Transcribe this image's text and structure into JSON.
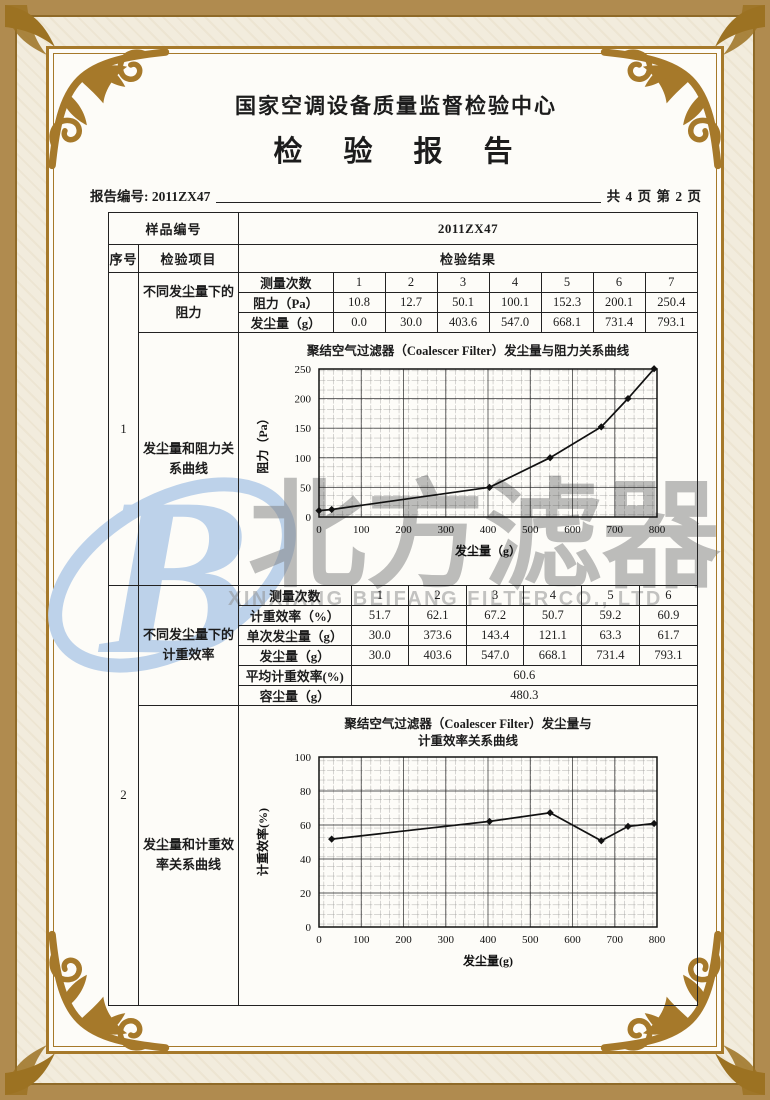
{
  "header": {
    "org_title": "国家空调设备质量监督检验中心",
    "report_title": "检　验　报　告",
    "report_no": "报告编号: 2011ZX47",
    "page_info": "共 4 页 第 2 页"
  },
  "watermark": {
    "logo_letter": "B",
    "cn_chars": [
      "北",
      "方",
      "滤",
      "器"
    ],
    "en_text": "XINXIANG BEIFANG FILTER CO., LTD",
    "logo_color": "#bdd2ea",
    "text_color": "#919191"
  },
  "frame": {
    "gold_color": "#a6792a",
    "band_color": "#b08b4f"
  },
  "table": {
    "sample_label": "样品编号",
    "sample_value": "2011ZX47",
    "headers": {
      "seq": "序号",
      "item": "检验项目",
      "result": "检验结果"
    },
    "section1": {
      "seq": "1",
      "item_table": "不同发尘量下的阻力",
      "item_chart": "发尘量和阻力关系曲线",
      "data_table": {
        "rows": [
          {
            "label": "测量次数",
            "values": [
              "1",
              "2",
              "3",
              "4",
              "5",
              "6",
              "7"
            ]
          },
          {
            "label": "阻力（Pa）",
            "values": [
              "10.8",
              "12.7",
              "50.1",
              "100.1",
              "152.3",
              "200.1",
              "250.4"
            ]
          },
          {
            "label": "发尘量（g）",
            "values": [
              "0.0",
              "30.0",
              "403.6",
              "547.0",
              "668.1",
              "731.4",
              "793.1"
            ]
          }
        ]
      }
    },
    "section2": {
      "seq": "2",
      "item_table": "不同发尘量下的计重效率",
      "item_chart": "发尘量和计重效率关系曲线",
      "data_table": {
        "rows": [
          {
            "label": "测量次数",
            "values": [
              "1",
              "2",
              "3",
              "4",
              "5",
              "6"
            ]
          },
          {
            "label": "计重效率（%）",
            "values": [
              "51.7",
              "62.1",
              "67.2",
              "50.7",
              "59.2",
              "60.9"
            ]
          },
          {
            "label": "单次发尘量（g）",
            "values": [
              "30.0",
              "373.6",
              "143.4",
              "121.1",
              "63.3",
              "61.7"
            ]
          },
          {
            "label": "发尘量（g）",
            "values": [
              "30.0",
              "403.6",
              "547.0",
              "668.1",
              "731.4",
              "793.1"
            ]
          }
        ],
        "summary_rows": [
          {
            "label": "平均计重效率(%)",
            "value": "60.6"
          },
          {
            "label": "容尘量（g）",
            "value": "480.3"
          }
        ]
      }
    }
  },
  "chart_data": [
    {
      "type": "line",
      "title": "聚结空气过滤器（Coalescer Filter）发尘量与阻力关系曲线",
      "xlabel": "发尘量（g）",
      "ylabel": "阻力（Pa）",
      "x": [
        0,
        30.0,
        403.6,
        547.0,
        668.1,
        731.4,
        793.1
      ],
      "y": [
        10.8,
        12.7,
        50.1,
        100.1,
        152.3,
        200.1,
        250.4
      ],
      "xlim": [
        0,
        800
      ],
      "ylim": [
        0,
        250
      ],
      "xticks": [
        0,
        100,
        200,
        300,
        400,
        500,
        600,
        700,
        800
      ],
      "yticks": [
        0,
        50,
        100,
        150,
        200,
        250
      ],
      "grid": true,
      "marker": "diamond",
      "line_color": "#111111",
      "legend": "none"
    },
    {
      "type": "line",
      "title_lines": [
        "聚结空气过滤器（Coalescer Filter）发尘量与",
        "计重效率关系曲线"
      ],
      "title": "聚结空气过滤器（Coalescer Filter）发尘量与计重效率关系曲线",
      "xlabel": "发尘量(g)",
      "ylabel": "计重效率(%)",
      "x": [
        30.0,
        403.6,
        547.0,
        668.1,
        731.4,
        793.1
      ],
      "y": [
        51.7,
        62.1,
        67.2,
        50.7,
        59.2,
        60.9
      ],
      "xlim": [
        0,
        800
      ],
      "ylim": [
        0,
        100
      ],
      "xticks": [
        0,
        100,
        200,
        300,
        400,
        500,
        600,
        700,
        800
      ],
      "yticks": [
        0,
        20,
        40,
        60,
        80,
        100
      ],
      "grid": true,
      "marker": "diamond",
      "line_color": "#111111",
      "legend": "none"
    }
  ]
}
